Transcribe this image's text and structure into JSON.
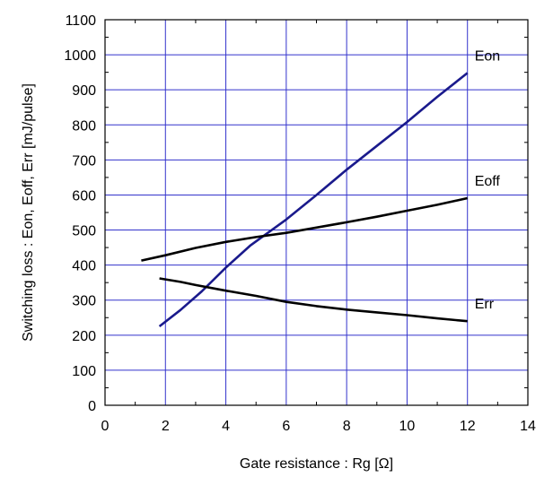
{
  "chart_data": {
    "type": "line",
    "title": "",
    "xlabel": "Gate resistance : Rg [Ω]",
    "ylabel": "Switching loss : Eon, Eoff, Err [mJ/pulse]",
    "xlim": [
      0,
      14
    ],
    "ylim": [
      0,
      1100
    ],
    "x_ticks": [
      0,
      2,
      4,
      6,
      8,
      10,
      12,
      14
    ],
    "y_ticks": [
      0,
      100,
      200,
      300,
      400,
      500,
      600,
      700,
      800,
      900,
      1000,
      1100
    ],
    "grid": true,
    "grid_color": "#3333cc",
    "series": [
      {
        "name": "Eon",
        "color": "#1a1a8c",
        "x": [
          1.8,
          2.5,
          3.2,
          4.0,
          4.8,
          6.0,
          7.0,
          8.0,
          9.0,
          10.0,
          11.0,
          12.0
        ],
        "y": [
          225,
          272,
          325,
          393,
          455,
          530,
          600,
          672,
          740,
          808,
          880,
          948
        ]
      },
      {
        "name": "Eoff",
        "color": "#000000",
        "x": [
          1.2,
          2.0,
          3.0,
          4.0,
          5.0,
          6.0,
          7.0,
          8.0,
          9.0,
          10.0,
          11.0,
          12.0
        ],
        "y": [
          413,
          428,
          449,
          466,
          480,
          492,
          507,
          522,
          538,
          555,
          572,
          591
        ]
      },
      {
        "name": "Err",
        "color": "#000000",
        "x": [
          1.8,
          2.5,
          3.0,
          4.0,
          5.0,
          6.0,
          7.0,
          8.0,
          9.0,
          10.0,
          11.0,
          12.0
        ],
        "y": [
          362,
          352,
          343,
          327,
          312,
          295,
          283,
          273,
          265,
          257,
          248,
          240
        ]
      }
    ]
  }
}
